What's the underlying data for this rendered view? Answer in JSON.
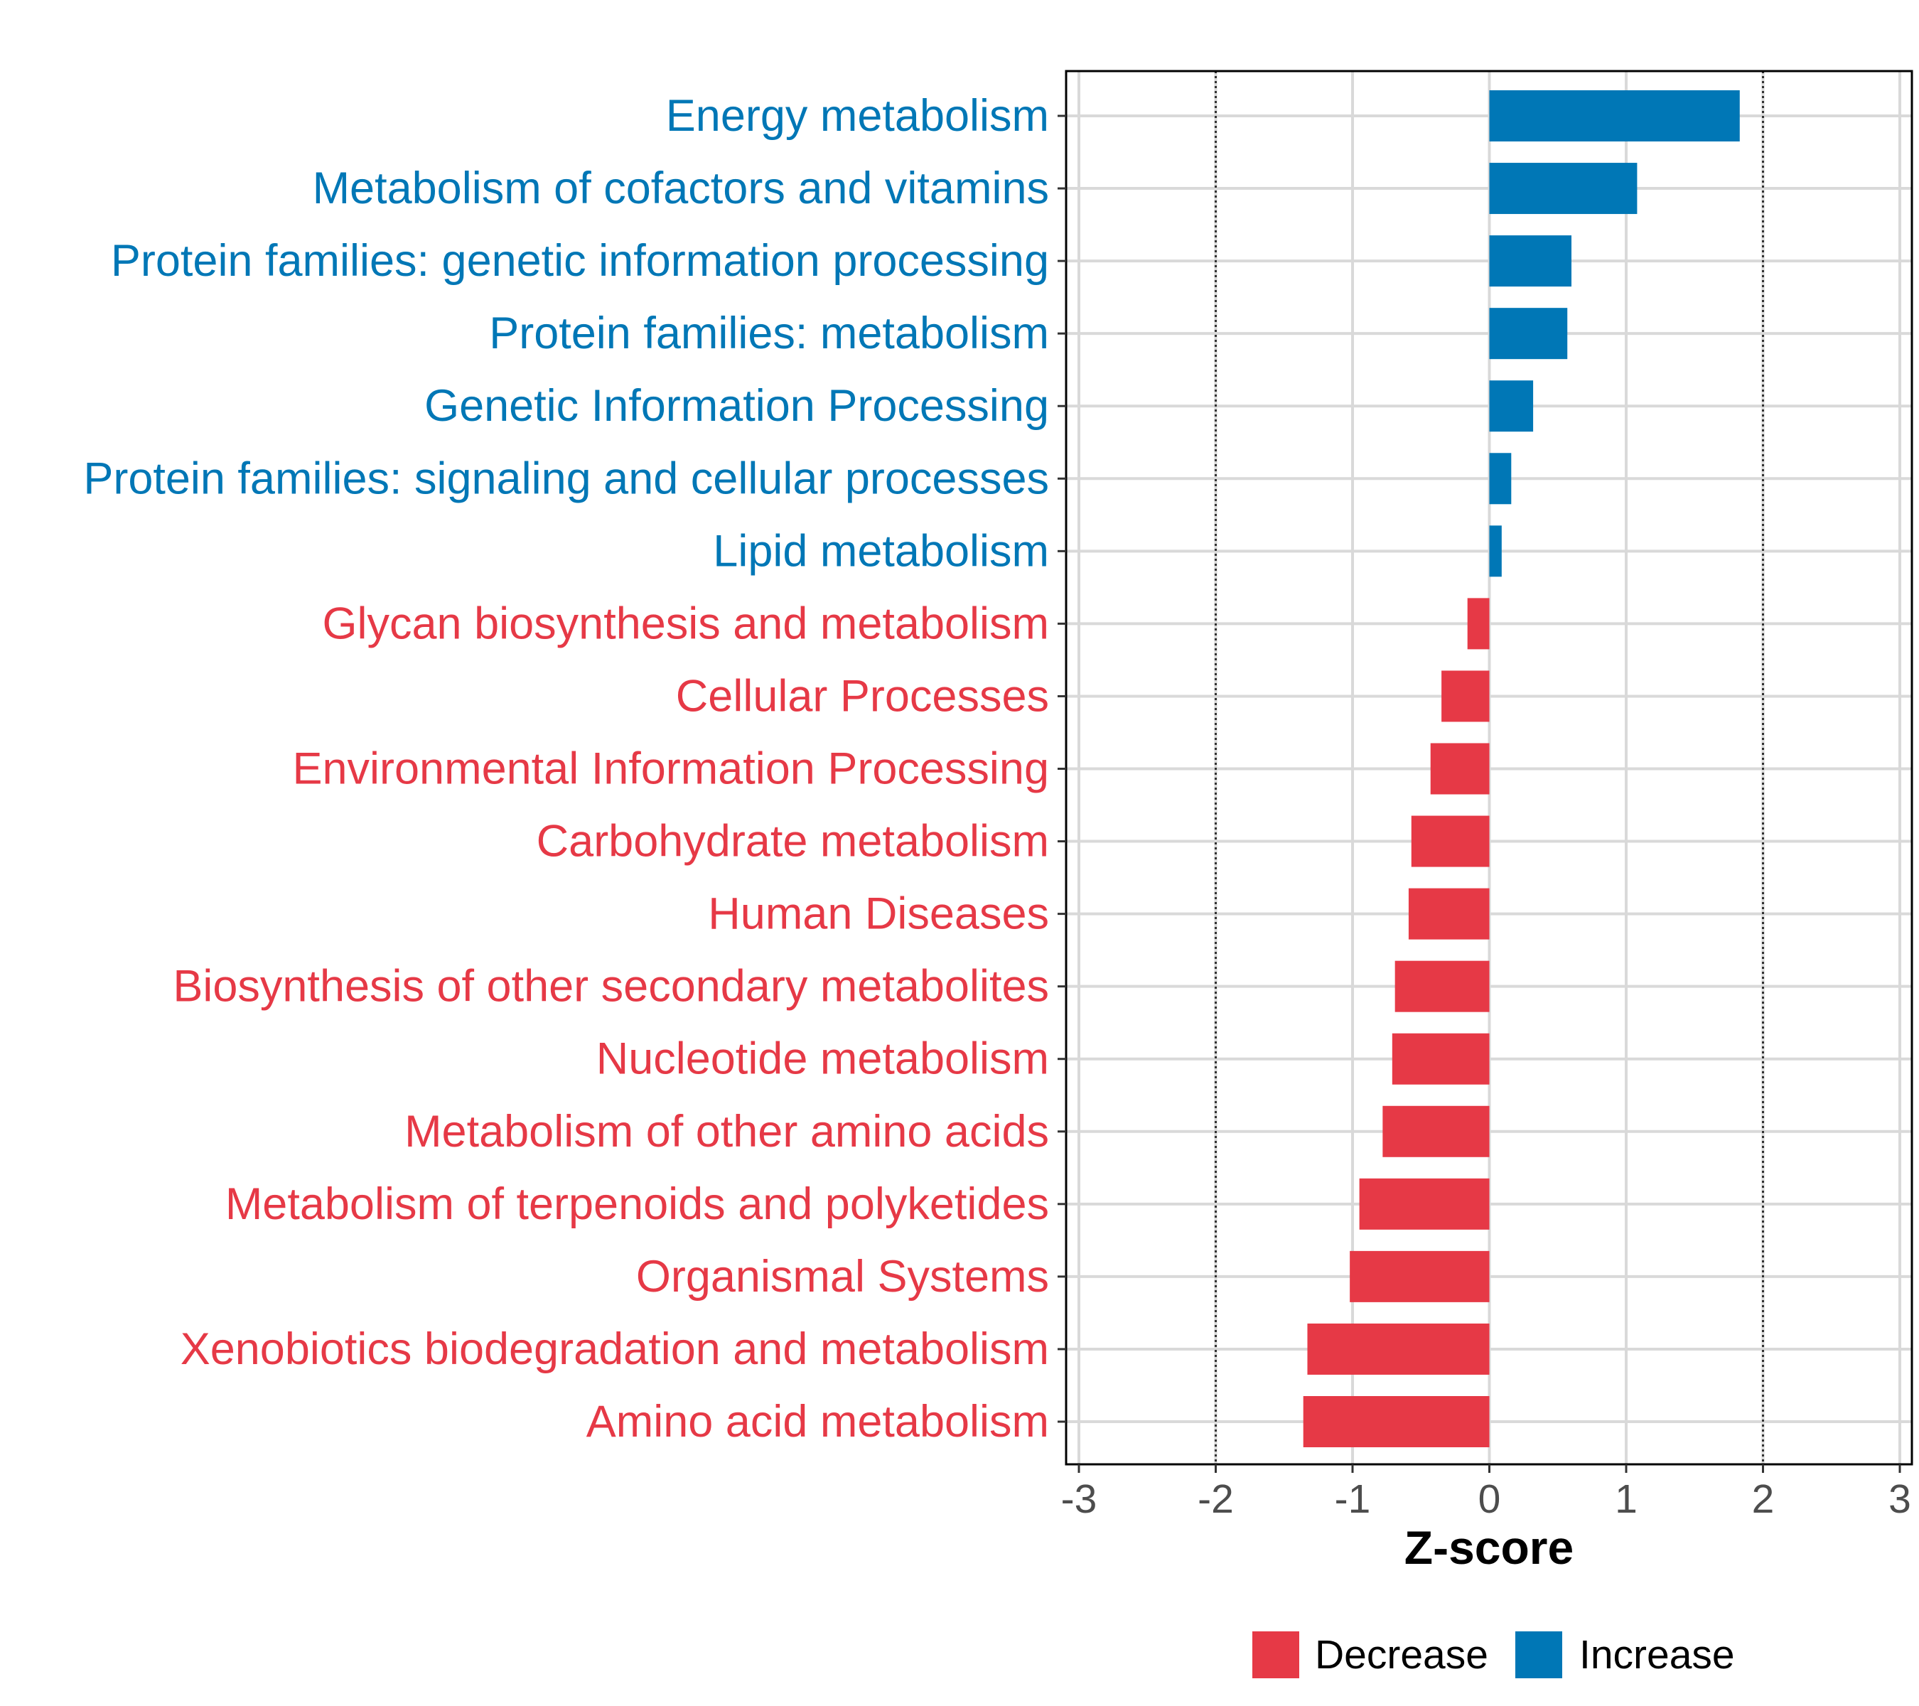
{
  "chart_data": {
    "type": "bar",
    "orientation": "horizontal",
    "xlabel": "Z-score",
    "xlim": [
      -3,
      3
    ],
    "xticks": [
      -3,
      -2,
      -1,
      0,
      1,
      2,
      3
    ],
    "xtick_labels": [
      "-3",
      "-2",
      "-1",
      "0",
      "1",
      "2",
      "3"
    ],
    "reference_lines": [
      -2,
      2
    ],
    "grid": true,
    "categories": [
      "Energy metabolism",
      "Metabolism of cofactors and vitamins",
      "Protein families: genetic information processing",
      "Protein families: metabolism",
      "Genetic Information Processing",
      "Protein families: signaling and cellular processes",
      "Lipid metabolism",
      "Glycan biosynthesis and metabolism",
      "Cellular Processes",
      "Environmental Information Processing",
      "Carbohydrate metabolism",
      "Human Diseases",
      "Biosynthesis of other secondary metabolites",
      "Nucleotide metabolism",
      "Metabolism of other amino acids",
      "Metabolism of terpenoids and polyketides",
      "Organismal Systems",
      "Xenobiotics biodegradation and metabolism",
      "Amino acid metabolism"
    ],
    "values": [
      1.83,
      1.08,
      0.6,
      0.57,
      0.32,
      0.16,
      0.09,
      -0.16,
      -0.35,
      -0.43,
      -0.57,
      -0.59,
      -0.69,
      -0.71,
      -0.78,
      -0.95,
      -1.02,
      -1.33,
      -1.36
    ],
    "groups": [
      "Increase",
      "Increase",
      "Increase",
      "Increase",
      "Increase",
      "Increase",
      "Increase",
      "Decrease",
      "Decrease",
      "Decrease",
      "Decrease",
      "Decrease",
      "Decrease",
      "Decrease",
      "Decrease",
      "Decrease",
      "Decrease",
      "Decrease",
      "Decrease"
    ],
    "legend": {
      "position": "bottom",
      "entries": [
        {
          "label": "Decrease",
          "color": "#e63946"
        },
        {
          "label": "Increase",
          "color": "#0077b6"
        }
      ]
    },
    "colors": {
      "Decrease": "#e63946",
      "Increase": "#0077b6"
    }
  }
}
